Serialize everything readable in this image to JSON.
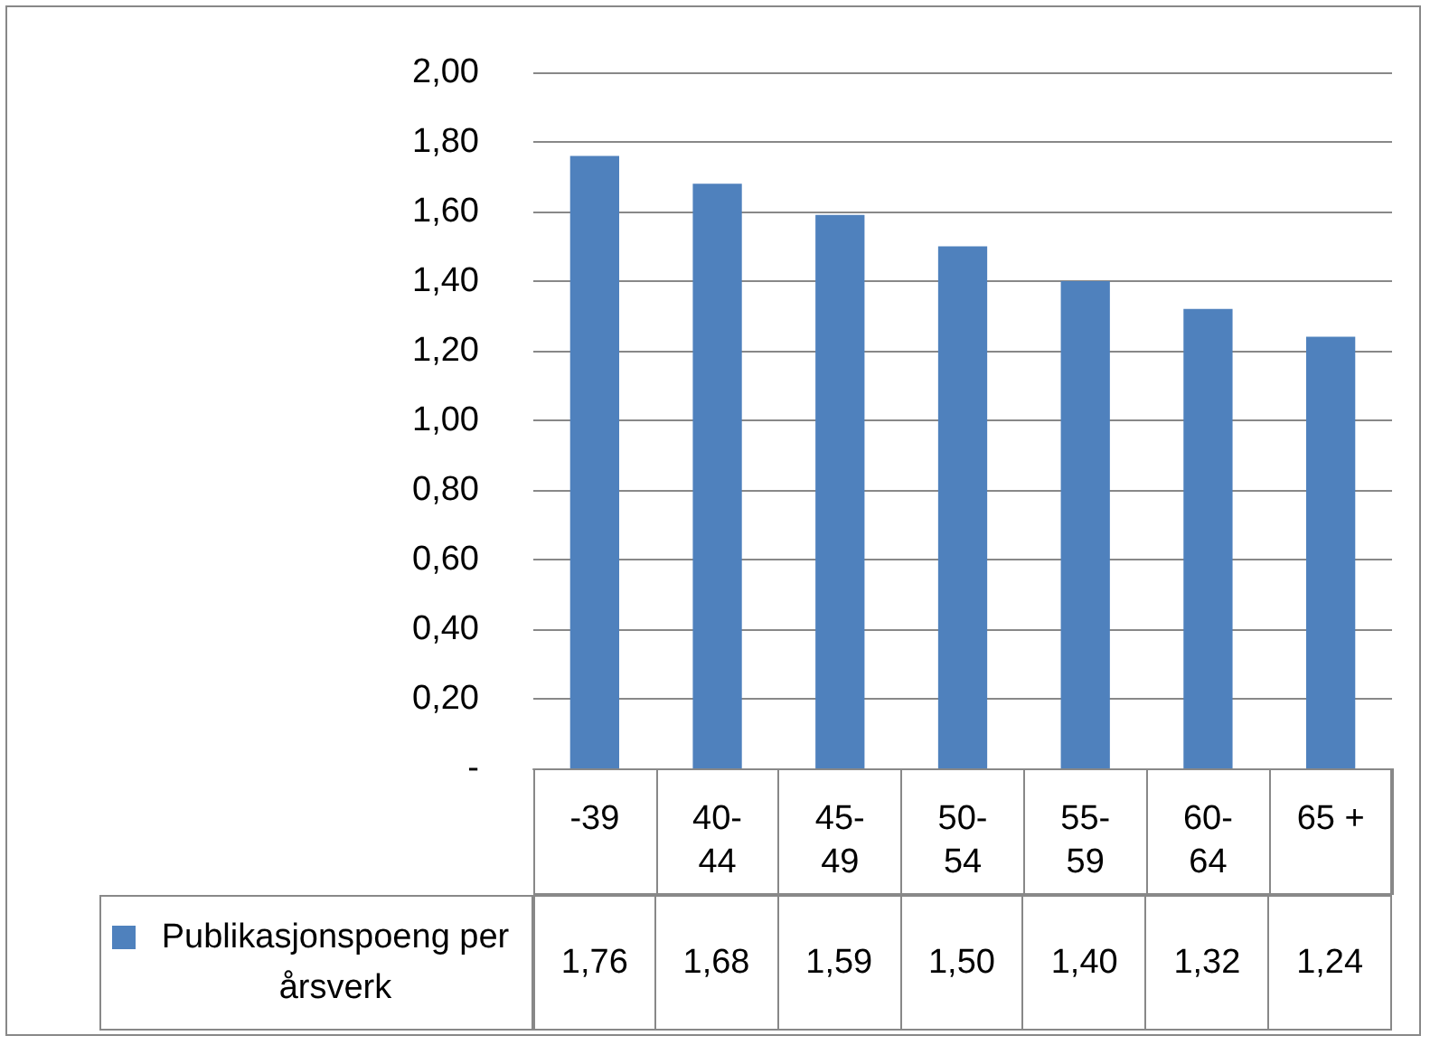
{
  "chart_data": {
    "type": "bar",
    "categories": [
      "-39",
      "40-44",
      "45-49",
      "50-54",
      "55-59",
      "60-64",
      "65 +"
    ],
    "series": [
      {
        "name": "Publikasjonspoeng per årsverk",
        "color": "#4f81bd",
        "values": [
          1.76,
          1.68,
          1.59,
          1.5,
          1.4,
          1.32,
          1.24
        ],
        "value_labels": [
          "1,76",
          "1,68",
          "1,59",
          "1,50",
          "1,40",
          "1,32",
          "1,24"
        ]
      }
    ],
    "ylim": [
      0,
      2
    ],
    "yticks": [
      {
        "value": 0,
        "label": "-"
      },
      {
        "value": 0.2,
        "label": "0,20"
      },
      {
        "value": 0.4,
        "label": "0,40"
      },
      {
        "value": 0.6,
        "label": "0,60"
      },
      {
        "value": 0.8,
        "label": "0,80"
      },
      {
        "value": 1,
        "label": "1,00"
      },
      {
        "value": 1.2,
        "label": "1,20"
      },
      {
        "value": 1.4,
        "label": "1,40"
      },
      {
        "value": 1.6,
        "label": "1,60"
      },
      {
        "value": 1.8,
        "label": "1,80"
      },
      {
        "value": 2,
        "label": "2,00"
      }
    ],
    "grid": "y",
    "legend": "bottom"
  }
}
